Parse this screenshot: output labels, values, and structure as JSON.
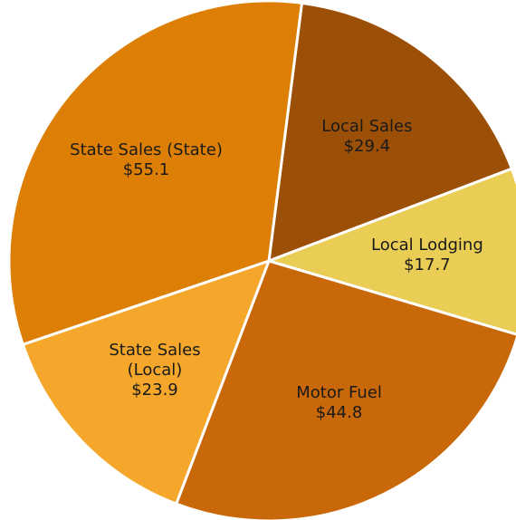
{
  "chart_data": {
    "type": "pie",
    "categories": [
      "Local Sales",
      "Local Lodging",
      "Motor Fuel",
      "State Sales (Local)",
      "State Sales (State)"
    ],
    "values": [
      29.4,
      17.7,
      44.8,
      23.9,
      55.1
    ],
    "value_labels": [
      "$29.4",
      "$17.7",
      "$44.8",
      "$23.9",
      "$55.1"
    ],
    "colors": [
      "#9c4f07",
      "#e9cd55",
      "#c96808",
      "#f5a72b",
      "#dc7f04"
    ]
  }
}
